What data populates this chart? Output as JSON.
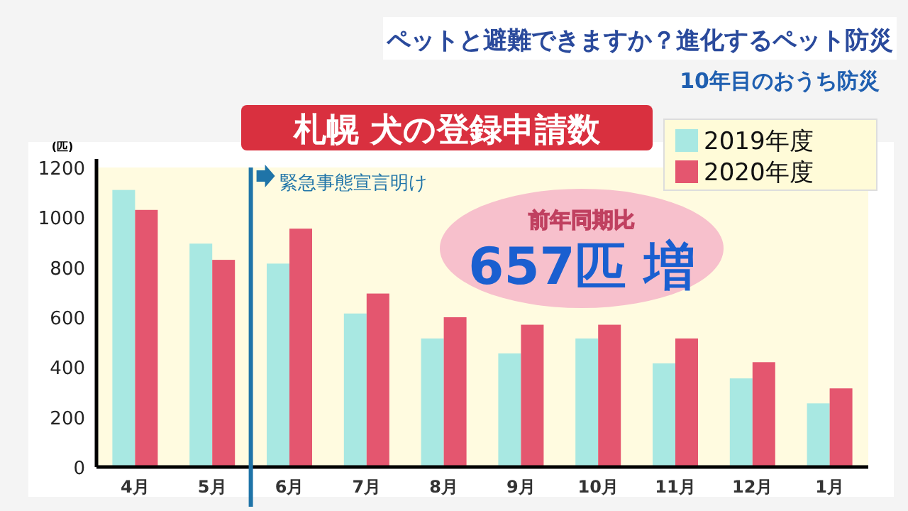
{
  "chart_data": {
    "type": "bar",
    "title": "札幌 犬の登録申請数",
    "ylabel": "(匹)",
    "annotations": [
      "ペットと避難できますか？進化するペット防災",
      "10年目のおうち防災",
      "前年同期比 657匹 増"
    ],
    "ref_lines": [
      {
        "axis": "x",
        "value": "6月",
        "label": "緊急事態宣言明け",
        "color": "#1f74a8"
      }
    ],
    "categories": [
      "4月",
      "5月",
      "6月",
      "7月",
      "8月",
      "9月",
      "10月",
      "11月",
      "12月",
      "1月"
    ],
    "series": [
      {
        "name": "2019年度",
        "color": "#a8e8e2",
        "values": [
          1110,
          895,
          815,
          615,
          515,
          455,
          515,
          415,
          355,
          255
        ]
      },
      {
        "name": "2020年度",
        "color": "#e4566f",
        "values": [
          1030,
          830,
          955,
          695,
          600,
          570,
          570,
          515,
          420,
          315
        ]
      }
    ],
    "ylim": [
      0,
      1200
    ],
    "yticks": [
      0,
      200,
      400,
      600,
      800,
      1000,
      1200
    ],
    "legend": "top right",
    "grid": false
  }
}
